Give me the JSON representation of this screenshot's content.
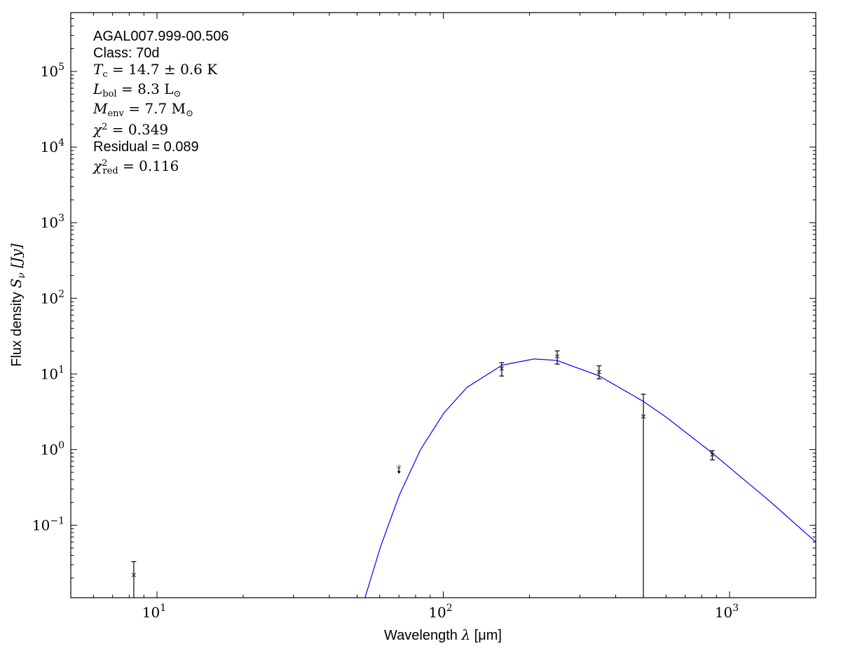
{
  "chart_data": {
    "type": "scatter",
    "xlabel": {
      "text": "Wavelength ",
      "symbol": "λ",
      "unit": " [μm]"
    },
    "ylabel": {
      "text": "Flux density ",
      "symbol": "S",
      "sub": "ν",
      "unit": " [Jy]"
    },
    "x_scale": "log",
    "y_scale": "log",
    "xlim": [
      5,
      2000
    ],
    "ylim": [
      0.011,
      600000
    ],
    "grid": false,
    "x_ticks": [
      {
        "value": 10,
        "base": "10",
        "exp": "1"
      },
      {
        "value": 100,
        "base": "10",
        "exp": "2"
      },
      {
        "value": 1000,
        "base": "10",
        "exp": "3"
      }
    ],
    "y_ticks": [
      {
        "value": 0.1,
        "base": "10",
        "exp": "−1"
      },
      {
        "value": 1,
        "base": "10",
        "exp": "0"
      },
      {
        "value": 10,
        "base": "10",
        "exp": "1"
      },
      {
        "value": 100,
        "base": "10",
        "exp": "2"
      },
      {
        "value": 1000,
        "base": "10",
        "exp": "3"
      },
      {
        "value": 10000,
        "base": "10",
        "exp": "4"
      },
      {
        "value": 100000,
        "base": "10",
        "exp": "5"
      }
    ],
    "measurements": [
      {
        "x": 8.3,
        "y": 0.022,
        "err_low": 0.022,
        "err_high": 0.011
      },
      {
        "x": 160,
        "y": 11.8,
        "err_low": 2.4,
        "err_high": 2.3
      },
      {
        "x": 250,
        "y": 17.1,
        "err_low": 3.6,
        "err_high": 3.1
      },
      {
        "x": 350,
        "y": 10.6,
        "err_low": 2.0,
        "err_high": 2.2
      },
      {
        "x": 500,
        "y": 2.74,
        "err_low": 2.74,
        "err_high": 2.66
      },
      {
        "x": 870,
        "y": 0.86,
        "err_low": 0.13,
        "err_high": 0.11
      }
    ],
    "upper_limits": [
      {
        "x": 70,
        "y": 0.59
      }
    ],
    "model_curve": {
      "color": "#0000ff",
      "x": [
        53.3,
        60.5,
        70.3,
        83.3,
        100.5,
        121,
        160.6,
        208,
        249,
        349,
        499,
        596,
        867,
        1387,
        2000
      ],
      "y": [
        0.0111,
        0.0531,
        0.253,
        1.0,
        3.05,
        6.65,
        13.1,
        15.8,
        15.1,
        9.5,
        4.35,
        2.74,
        0.91,
        0.205,
        0.06
      ]
    },
    "annotations": [
      {
        "kind": "plain",
        "text": "AGAL007.999-00.506"
      },
      {
        "kind": "plain",
        "text": "Class: 70d"
      },
      {
        "kind": "math",
        "sym": "T",
        "sub": "c",
        "sup": "",
        "rest": " = 14.7 ± 0.6 K"
      },
      {
        "kind": "math",
        "sym": "L",
        "sub": "bol",
        "sup": "",
        "rest": " = 8.3 L",
        "rest_sub": "⊙"
      },
      {
        "kind": "math",
        "sym": "M",
        "sub": "env",
        "sup": "",
        "rest": " = 7.7 M",
        "rest_sub": "⊙"
      },
      {
        "kind": "math",
        "sym": "χ",
        "sub": "",
        "sup": "2",
        "rest": " = 0.349"
      },
      {
        "kind": "plain",
        "text": "Residual = 0.089"
      },
      {
        "kind": "math",
        "sym": "χ",
        "sub": "red",
        "sup": "2",
        "rest": " = 0.116"
      }
    ]
  }
}
